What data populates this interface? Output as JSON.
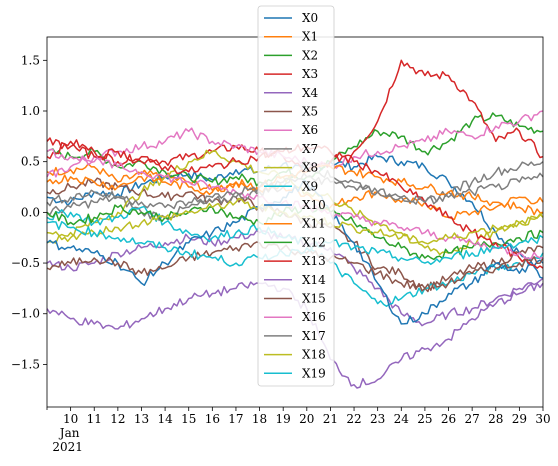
{
  "chart_data": {
    "type": "line",
    "title": "",
    "xlabel": "",
    "ylabel": "",
    "x_start": "2021-01-09",
    "x_end": "2021-01-30",
    "x_ticks": [
      "10",
      "11",
      "12",
      "13",
      "14",
      "15",
      "16",
      "17",
      "18",
      "19",
      "20",
      "21",
      "22",
      "23",
      "24",
      "25",
      "26",
      "27",
      "28",
      "29",
      "30"
    ],
    "x_month_label": "Jan",
    "x_year_label": "2021",
    "ylim": [
      -1.92,
      1.73
    ],
    "y_ticks": [
      -1.5,
      -1.0,
      -0.5,
      0.0,
      0.5,
      1.0,
      1.5
    ],
    "y_tick_labels": [
      "−1.5",
      "−1.0",
      "−0.5",
      "0.0",
      "0.5",
      "1.0",
      "1.5"
    ],
    "grid": false,
    "legend_position": "top-center",
    "series": [
      {
        "name": "X0",
        "color": "#1f77b4",
        "values": [
          0.15,
          0.1,
          0.2,
          0.18,
          0.28,
          0.35,
          0.38,
          0.32,
          0.42,
          0.4,
          0.48,
          0.4,
          0.5,
          0.45,
          0.55,
          0.5,
          0.45,
          0.3,
          0.1,
          -0.2,
          -0.4,
          -0.65
        ]
      },
      {
        "name": "X1",
        "color": "#ff7f0e",
        "values": [
          0.4,
          0.42,
          0.45,
          0.3,
          0.38,
          0.35,
          0.3,
          0.22,
          0.3,
          0.22,
          0.25,
          0.18,
          0.05,
          0.15,
          0.2,
          0.1,
          0.1,
          -0.05,
          0.0,
          0.05,
          0.15,
          0.1
        ]
      },
      {
        "name": "X2",
        "color": "#2ca02c",
        "values": [
          0.6,
          0.55,
          0.6,
          0.45,
          0.5,
          0.4,
          0.35,
          0.3,
          0.35,
          0.3,
          0.4,
          0.35,
          0.5,
          0.65,
          0.8,
          0.75,
          0.6,
          0.7,
          0.9,
          0.95,
          0.85,
          0.8
        ]
      },
      {
        "name": "X3",
        "color": "#d62728",
        "values": [
          0.55,
          0.7,
          0.6,
          0.5,
          0.55,
          0.5,
          0.55,
          0.6,
          0.65,
          0.6,
          0.55,
          0.4,
          0.5,
          0.6,
          0.9,
          1.5,
          1.35,
          1.35,
          1.1,
          0.7,
          0.8,
          0.55
        ]
      },
      {
        "name": "X4",
        "color": "#9467bd",
        "values": [
          -0.5,
          -0.55,
          -0.5,
          -0.4,
          -0.35,
          -0.3,
          -0.25,
          -0.3,
          -0.25,
          -0.2,
          -0.25,
          -0.3,
          -0.35,
          -0.55,
          -0.75,
          -1.0,
          -1.1,
          -1.0,
          -0.95,
          -0.85,
          -0.75,
          -0.65
        ]
      },
      {
        "name": "X5",
        "color": "#8c564b",
        "values": [
          0.2,
          0.25,
          0.3,
          0.25,
          0.2,
          0.15,
          0.2,
          0.1,
          0.15,
          0.05,
          0.0,
          -0.1,
          -0.15,
          -0.3,
          -0.55,
          -0.6,
          -0.75,
          -0.65,
          -0.55,
          -0.5,
          -0.4,
          -0.35
        ]
      },
      {
        "name": "X6",
        "color": "#e377c2",
        "values": [
          0.35,
          0.45,
          0.55,
          0.6,
          0.65,
          0.7,
          0.8,
          0.7,
          0.65,
          0.6,
          0.55,
          0.5,
          0.45,
          0.55,
          0.6,
          0.65,
          0.7,
          0.8,
          0.75,
          0.85,
          0.9,
          1.0
        ]
      },
      {
        "name": "X7",
        "color": "#7f7f7f",
        "values": [
          0.0,
          0.05,
          0.1,
          0.15,
          0.0,
          -0.05,
          0.05,
          0.1,
          0.15,
          0.2,
          0.25,
          0.5,
          0.35,
          0.3,
          0.2,
          0.15,
          0.1,
          0.2,
          0.3,
          0.4,
          0.45,
          0.5
        ]
      },
      {
        "name": "X8",
        "color": "#bcbd22",
        "values": [
          -0.3,
          -0.2,
          -0.1,
          0.0,
          0.2,
          0.35,
          0.5,
          0.6,
          0.5,
          0.4,
          0.35,
          0.2,
          0.15,
          0.0,
          -0.1,
          -0.2,
          -0.35,
          -0.4,
          -0.3,
          -0.2,
          -0.1,
          0.0
        ]
      },
      {
        "name": "X9",
        "color": "#17becf",
        "values": [
          -0.05,
          0.0,
          -0.1,
          -0.05,
          0.05,
          -0.1,
          -0.2,
          -0.25,
          -0.2,
          -0.15,
          -0.25,
          -0.3,
          -0.5,
          -0.7,
          -0.9,
          -0.85,
          -0.75,
          -0.7,
          -0.6,
          -0.55,
          -0.5,
          -0.4
        ]
      },
      {
        "name": "X10",
        "color": "#1f77b4",
        "values": [
          -0.3,
          -0.35,
          -0.4,
          -0.5,
          -0.7,
          -0.5,
          -0.3,
          -0.2,
          -0.1,
          0.05,
          0.15,
          0.3,
          0.0,
          -0.3,
          -0.7,
          -1.1,
          -1.0,
          -0.8,
          -0.7,
          -0.5,
          -0.6,
          -0.5
        ]
      },
      {
        "name": "X11",
        "color": "#ff7f0e",
        "values": [
          0.3,
          0.35,
          0.3,
          0.25,
          0.35,
          0.3,
          0.25,
          0.2,
          0.3,
          0.25,
          0.35,
          0.4,
          0.45,
          0.4,
          0.35,
          0.3,
          0.25,
          0.2,
          0.15,
          0.1,
          0.05,
          0.0
        ]
      },
      {
        "name": "X12",
        "color": "#2ca02c",
        "values": [
          0.0,
          -0.1,
          -0.05,
          0.05,
          0.0,
          -0.05,
          0.0,
          0.05,
          -0.05,
          -0.1,
          0.0,
          0.05,
          0.0,
          -0.1,
          -0.25,
          -0.35,
          -0.45,
          -0.4,
          -0.35,
          -0.3,
          -0.25,
          -0.2
        ]
      },
      {
        "name": "X13",
        "color": "#d62728",
        "values": [
          0.7,
          0.65,
          0.55,
          0.6,
          0.5,
          0.45,
          0.4,
          0.45,
          0.5,
          0.55,
          0.6,
          0.65,
          0.6,
          0.5,
          0.4,
          0.25,
          0.1,
          -0.05,
          -0.2,
          -0.3,
          -0.45,
          -0.55
        ]
      },
      {
        "name": "X14",
        "color": "#9467bd",
        "values": [
          -0.95,
          -1.05,
          -1.1,
          -1.15,
          -1.05,
          -0.95,
          -0.85,
          -0.8,
          -0.75,
          -0.7,
          -0.75,
          -0.95,
          -1.45,
          -1.7,
          -1.65,
          -1.45,
          -1.35,
          -1.25,
          -1.05,
          -0.9,
          -0.8,
          -0.7
        ]
      },
      {
        "name": "X15",
        "color": "#8c564b",
        "values": [
          -0.55,
          -0.5,
          -0.45,
          -0.5,
          -0.6,
          -0.55,
          -0.45,
          -0.4,
          -0.35,
          -0.3,
          -0.35,
          -0.4,
          -0.45,
          -0.5,
          -0.6,
          -0.7,
          -0.75,
          -0.7,
          -0.6,
          -0.55,
          -0.5,
          -0.45
        ]
      },
      {
        "name": "X16",
        "color": "#e377c2",
        "values": [
          0.6,
          0.55,
          0.5,
          0.45,
          0.4,
          0.35,
          0.3,
          0.25,
          0.2,
          0.15,
          0.1,
          0.05,
          0.0,
          -0.05,
          -0.1,
          -0.15,
          -0.2,
          -0.25,
          -0.3,
          -0.35,
          -0.4,
          -0.45
        ]
      },
      {
        "name": "X17",
        "color": "#7f7f7f",
        "values": [
          0.1,
          0.15,
          0.2,
          0.15,
          0.1,
          0.05,
          0.1,
          0.15,
          0.2,
          0.25,
          0.3,
          0.35,
          0.3,
          0.25,
          0.2,
          0.15,
          0.1,
          0.15,
          0.2,
          0.25,
          0.3,
          0.35
        ]
      },
      {
        "name": "X18",
        "color": "#bcbd22",
        "values": [
          -0.2,
          -0.25,
          -0.2,
          -0.15,
          -0.1,
          -0.05,
          0.0,
          0.05,
          0.1,
          0.05,
          0.0,
          -0.05,
          -0.1,
          -0.15,
          -0.2,
          -0.25,
          -0.3,
          -0.25,
          -0.2,
          -0.15,
          -0.1,
          -0.05
        ]
      },
      {
        "name": "X19",
        "color": "#17becf",
        "values": [
          -0.1,
          -0.15,
          -0.2,
          -0.25,
          -0.3,
          -0.35,
          -0.4,
          -0.45,
          -0.5,
          -0.45,
          -0.4,
          -0.35,
          -0.3,
          -0.35,
          -0.4,
          -0.45,
          -0.5,
          -0.45,
          -0.4,
          -0.35,
          -0.3,
          -0.25
        ]
      }
    ]
  }
}
